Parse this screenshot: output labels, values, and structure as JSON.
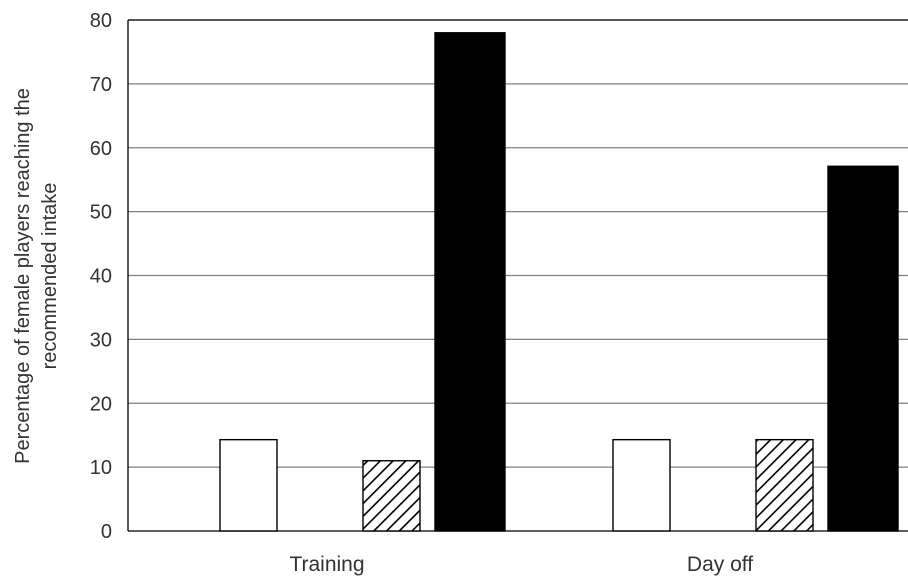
{
  "chart_data": {
    "type": "bar",
    "title": "",
    "xlabel": "",
    "ylabel": "Percentage of female players reaching the recommended intake",
    "ylabel_lines": [
      "Percentage of female players reaching the",
      "recommended intake"
    ],
    "ylim": [
      0,
      80
    ],
    "yticks": [
      0,
      10,
      20,
      30,
      40,
      50,
      60,
      70,
      80
    ],
    "grid": true,
    "legend": "none",
    "categories": [
      "Training",
      "Day off"
    ],
    "series": [
      {
        "fill": "white-outline",
        "values": [
          14.3,
          14.3
        ]
      },
      {
        "fill": "diagonal-hatch",
        "values": [
          11.0,
          14.3
        ]
      },
      {
        "fill": "black",
        "values": [
          78,
          57.1
        ]
      }
    ]
  },
  "colors": {
    "bar_outline": "#000000",
    "bar_white": "#ffffff",
    "bar_black": "#000000",
    "hatch": "#000000",
    "gridline": "#7f7f7f",
    "axis_line": "#000000",
    "text": "#333333"
  }
}
